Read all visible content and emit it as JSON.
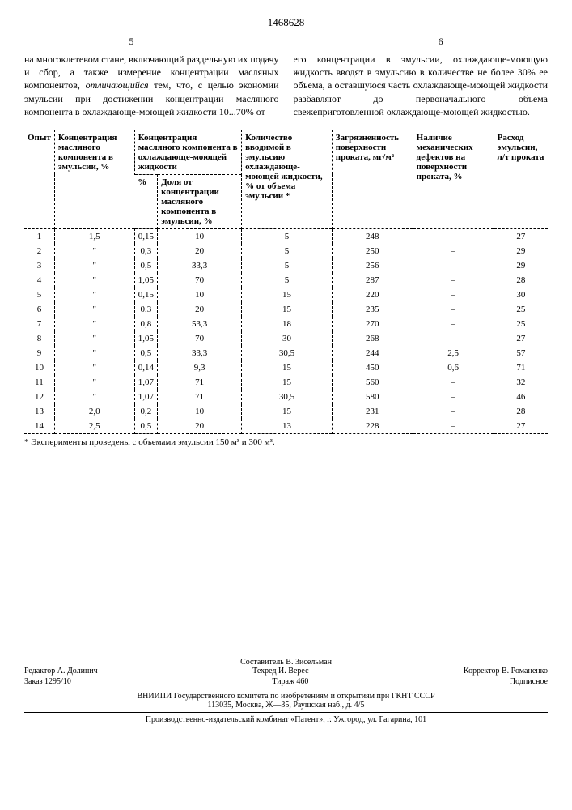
{
  "doc_number": "1468628",
  "page_left": "5",
  "page_right": "6",
  "text_left": "на многоклетевом стане, включающий раздельную их подачу и сбор, а также измерение концентрации масляных компонентов, ",
  "text_left_em": "отличающийся",
  "text_left_2": " тем, что, с целью экономии эмульсии при достижении концентрации масляного компонента в охлаждающе-моющей жидкости 10...70% от",
  "text_right": "его концентрации в эмульсии, охлаждающе-моющую жидкость вводят в эмульсию в количестве не более 30% ее объема, а оставшуюся часть охлаждающе-моющей жидкости разбавляют до первоначального объема свежеприготовленной охлаждающе-моющей жидкостью.",
  "table": {
    "headers": [
      "Опыт",
      "Концентрация масляного компонента в эмульсии, %",
      "Концентрация масляного компонента в охлаждающе-моющей жидкости",
      "Количество вводимой в эмульсию охлаждающе-моющей жидкости, % от объема эмульсии *",
      "Загрязненность поверхности проката, мг/м²",
      "Наличие механических дефектов на поверхности проката, %",
      "Расход эмульсии, л/т проката"
    ],
    "subheaders": [
      "%",
      "Доля от концентрации масляного компонента в эмульсии, %"
    ],
    "rows": [
      [
        "1",
        "1,5",
        "0,15",
        "10",
        "5",
        "248",
        "–",
        "27"
      ],
      [
        "2",
        "\"",
        "0,3",
        "20",
        "5",
        "250",
        "–",
        "29"
      ],
      [
        "3",
        "\"",
        "0,5",
        "33,3",
        "5",
        "256",
        "–",
        "29"
      ],
      [
        "4",
        "\"",
        "1,05",
        "70",
        "5",
        "287",
        "–",
        "28"
      ],
      [
        "5",
        "\"",
        "0,15",
        "10",
        "15",
        "220",
        "–",
        "30"
      ],
      [
        "6",
        "\"",
        "0,3",
        "20",
        "15",
        "235",
        "–",
        "25"
      ],
      [
        "7",
        "\"",
        "0,8",
        "53,3",
        "18",
        "270",
        "–",
        "25"
      ],
      [
        "8",
        "\"",
        "1,05",
        "70",
        "30",
        "268",
        "–",
        "27"
      ],
      [
        "9",
        "\"",
        "0,5",
        "33,3",
        "30,5",
        "244",
        "2,5",
        "57"
      ],
      [
        "10",
        "\"",
        "0,14",
        "9,3",
        "15",
        "450",
        "0,6",
        "71"
      ],
      [
        "11",
        "\"",
        "1,07",
        "71",
        "15",
        "560",
        "–",
        "32"
      ],
      [
        "12",
        "\"",
        "1,07",
        "71",
        "30,5",
        "580",
        "–",
        "46"
      ],
      [
        "13",
        "2,0",
        "0,2",
        "10",
        "15",
        "231",
        "–",
        "28"
      ],
      [
        "14",
        "2,5",
        "0,5",
        "20",
        "13",
        "228",
        "–",
        "27"
      ]
    ]
  },
  "footnote": "* Эксперименты проведены с объемами эмульсии 150 м³ и 300 м³.",
  "credits": {
    "compiler": "Составитель В. Зисельман",
    "editor": "Редактор А. Долинич",
    "tech": "Техред И. Верес",
    "corrector": "Корректор В. Романенко",
    "order": "Заказ 1295/10",
    "tirage": "Тираж 460",
    "signed": "Подписное",
    "org1": "ВНИИПИ Государственного комитета по изобретениям и открытиям при ГКНТ СССР",
    "addr1": "113035, Москва, Ж—35, Раушская наб., д. 4/5",
    "org2": "Производственно-издательский комбинат «Патент», г. Ужгород, ул. Гагарина, 101"
  }
}
